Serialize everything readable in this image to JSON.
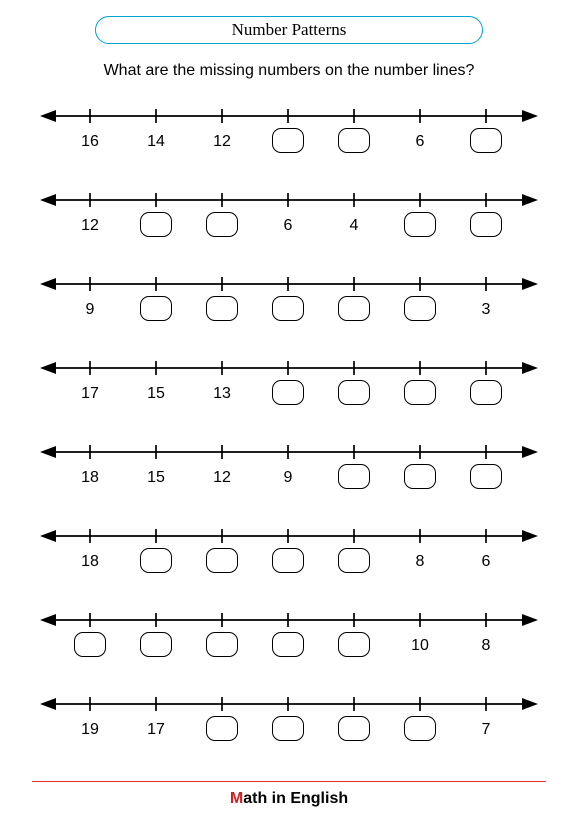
{
  "title": "Number Patterns",
  "question": "What are the missing numbers on the number lines?",
  "footer_m": "M",
  "footer_rest": "ath in English",
  "layout": {
    "line_width": 498,
    "tick_count": 7,
    "tick_start_x": 50,
    "tick_spacing": 66,
    "arrow_color": "#000000",
    "blank_box_border": "#000000",
    "title_border_color": "#00a0d0",
    "footer_line_color": "#e03030"
  },
  "lines": [
    {
      "cells": [
        "16",
        "14",
        "12",
        null,
        null,
        "6",
        null
      ]
    },
    {
      "cells": [
        "12",
        null,
        null,
        "6",
        "4",
        null,
        null
      ]
    },
    {
      "cells": [
        "9",
        null,
        null,
        null,
        null,
        null,
        "3"
      ]
    },
    {
      "cells": [
        "17",
        "15",
        "13",
        null,
        null,
        null,
        null
      ]
    },
    {
      "cells": [
        "18",
        "15",
        "12",
        "9",
        null,
        null,
        null
      ]
    },
    {
      "cells": [
        "18",
        null,
        null,
        null,
        null,
        "8",
        "6"
      ]
    },
    {
      "cells": [
        null,
        null,
        null,
        null,
        null,
        "10",
        "8"
      ]
    },
    {
      "cells": [
        "19",
        "17",
        null,
        null,
        null,
        null,
        "7"
      ]
    }
  ]
}
